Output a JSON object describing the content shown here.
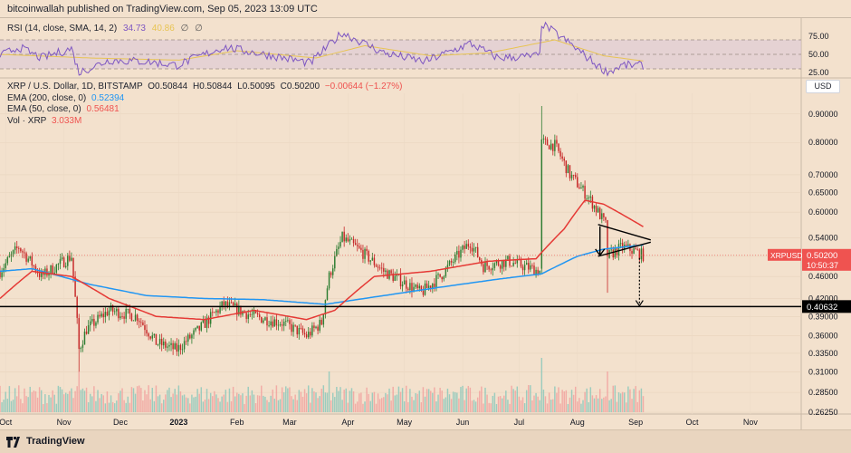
{
  "header": {
    "published": "bitcoinwallah published on TradingView.com, Sep 05, 2023 13:09 UTC"
  },
  "rsi_legend": {
    "label": "RSI (14, close, SMA, 14, 2)",
    "value": "34.73",
    "sma_value": "40.86",
    "extra1": "∅",
    "extra2": "∅"
  },
  "legend": {
    "symbol": "XRP / U.S. Dollar, 1D, BITSTAMP",
    "open": "O0.50844",
    "high": "H0.50844",
    "low": "L0.50095",
    "close": "C0.50200",
    "change": "−0.00644 (−1.27%)",
    "ema200_label": "EMA (200, close, 0)",
    "ema200_value": "0.52394",
    "ema50_label": "EMA (50, close, 0)",
    "ema50_value": "0.56481",
    "vol_label": "Vol · XRP",
    "vol_value": "3.033M"
  },
  "currency_button": "USD",
  "footer": {
    "brand": "TradingView"
  },
  "colors": {
    "background": "#f3e1cd",
    "up": "#26a69a",
    "down": "#ef5350",
    "candle_body_up": "#2e7d32",
    "candle_body_down": "#c62828",
    "ema200": "#2196f3",
    "ema50": "#e53935",
    "rsi": "#7e57c2",
    "rsi_sma": "#e8c453",
    "support": "#000000"
  },
  "chart_data": {
    "type": "candlestick",
    "title": "XRP / U.S. Dollar, 1D, BITSTAMP",
    "y_scale": "log",
    "ylim": [
      0.2626,
      0.98
    ],
    "y_ticks": [
      0.9,
      0.8,
      0.7,
      0.65,
      0.6,
      0.54,
      0.5,
      0.46,
      0.42,
      0.39,
      0.36,
      0.335,
      0.31,
      0.285,
      0.2625
    ],
    "y_tick_labels": [
      "0.90000",
      "0.80000",
      "0.70000",
      "0.65000",
      "0.60000",
      "0.54000",
      "0.50000",
      "0.46000",
      "0.42000",
      "0.39000",
      "0.36000",
      "0.33500",
      "0.31000",
      "0.28500",
      "0.26250"
    ],
    "x_labels": [
      "Oct",
      "Nov",
      "Dec",
      "2023",
      "Feb",
      "Mar",
      "Apr",
      "May",
      "Jun",
      "Jul",
      "Aug",
      "Sep",
      "Oct",
      "Nov"
    ],
    "xlim": [
      "2022-09-28",
      "2023-11-28"
    ],
    "last_date": "2023-09-05",
    "key_points": [
      {
        "date": "2022-09-28",
        "close": 0.47
      },
      {
        "date": "2022-10-08",
        "close": 0.52
      },
      {
        "date": "2022-10-20",
        "close": 0.46
      },
      {
        "date": "2022-11-05",
        "close": 0.5
      },
      {
        "date": "2022-11-09",
        "close": 0.34
      },
      {
        "date": "2022-11-13",
        "close": 0.37
      },
      {
        "date": "2022-11-25",
        "close": 0.4
      },
      {
        "date": "2022-12-10",
        "close": 0.39
      },
      {
        "date": "2022-12-20",
        "close": 0.35
      },
      {
        "date": "2022-12-31",
        "close": 0.34
      },
      {
        "date": "2023-01-12",
        "close": 0.37
      },
      {
        "date": "2023-01-25",
        "close": 0.41
      },
      {
        "date": "2023-02-10",
        "close": 0.39
      },
      {
        "date": "2023-02-25",
        "close": 0.38
      },
      {
        "date": "2023-03-10",
        "close": 0.36
      },
      {
        "date": "2023-03-18",
        "close": 0.38
      },
      {
        "date": "2023-03-22",
        "close": 0.46
      },
      {
        "date": "2023-03-29",
        "close": 0.54
      },
      {
        "date": "2023-04-08",
        "close": 0.51
      },
      {
        "date": "2023-04-20",
        "close": 0.47
      },
      {
        "date": "2023-05-10",
        "close": 0.43
      },
      {
        "date": "2023-05-20",
        "close": 0.46
      },
      {
        "date": "2023-06-05",
        "close": 0.53
      },
      {
        "date": "2023-06-12",
        "close": 0.48
      },
      {
        "date": "2023-06-25",
        "close": 0.49
      },
      {
        "date": "2023-07-12",
        "close": 0.47
      },
      {
        "date": "2023-07-13",
        "close": 0.8
      },
      {
        "date": "2023-07-20",
        "close": 0.79
      },
      {
        "date": "2023-07-28",
        "close": 0.7
      },
      {
        "date": "2023-08-08",
        "close": 0.63
      },
      {
        "date": "2023-08-16",
        "close": 0.57
      },
      {
        "date": "2023-08-17",
        "close": 0.5
      },
      {
        "date": "2023-08-25",
        "close": 0.52
      },
      {
        "date": "2023-09-01",
        "close": 0.51
      },
      {
        "date": "2023-09-05",
        "close": 0.502
      }
    ],
    "series": [
      {
        "name": "EMA (200, close, 0)",
        "color": "#2196f3",
        "points": [
          [
            "2022-09-28",
            0.47
          ],
          [
            "2022-10-15",
            0.475
          ],
          [
            "2022-11-15",
            0.445
          ],
          [
            "2022-12-15",
            0.425
          ],
          [
            "2023-01-15",
            0.42
          ],
          [
            "2023-02-15",
            0.418
          ],
          [
            "2023-03-20",
            0.41
          ],
          [
            "2023-04-20",
            0.425
          ],
          [
            "2023-05-20",
            0.44
          ],
          [
            "2023-06-20",
            0.455
          ],
          [
            "2023-07-13",
            0.465
          ],
          [
            "2023-08-01",
            0.5
          ],
          [
            "2023-08-15",
            0.515
          ],
          [
            "2023-09-05",
            0.524
          ]
        ]
      },
      {
        "name": "EMA (50, close, 0)",
        "color": "#e53935",
        "points": [
          [
            "2022-09-28",
            0.42
          ],
          [
            "2022-10-15",
            0.47
          ],
          [
            "2022-11-05",
            0.46
          ],
          [
            "2022-11-25",
            0.42
          ],
          [
            "2022-12-20",
            0.39
          ],
          [
            "2023-01-15",
            0.385
          ],
          [
            "2023-02-10",
            0.4
          ],
          [
            "2023-03-10",
            0.385
          ],
          [
            "2023-03-25",
            0.4
          ],
          [
            "2023-04-15",
            0.46
          ],
          [
            "2023-05-15",
            0.47
          ],
          [
            "2023-06-15",
            0.49
          ],
          [
            "2023-07-10",
            0.495
          ],
          [
            "2023-07-25",
            0.56
          ],
          [
            "2023-08-05",
            0.63
          ],
          [
            "2023-08-15",
            0.62
          ],
          [
            "2023-09-05",
            0.565
          ]
        ]
      }
    ],
    "current_price": {
      "label": "XRPUSD",
      "value": "0.50200",
      "countdown": "10:50:37"
    },
    "support_level": {
      "value": 0.40632,
      "label": "0.40632"
    },
    "projected_target": 0.406,
    "triangle": {
      "upper": [
        [
          "2023-08-12",
          0.57
        ],
        [
          "2023-09-09",
          0.535
        ]
      ],
      "lower": [
        [
          "2023-08-12",
          0.5
        ],
        [
          "2023-09-09",
          0.53
        ]
      ]
    },
    "rsi": {
      "label": "RSI (14, close, SMA, 14, 2)",
      "ylim": [
        20,
        95
      ],
      "ticks": [
        75,
        50,
        25
      ],
      "tick_labels": [
        "75.00",
        "50.00",
        "25.00"
      ],
      "points": [
        [
          "2022-09-28",
          48
        ],
        [
          "2022-10-08",
          60
        ],
        [
          "2022-10-20",
          45
        ],
        [
          "2022-11-05",
          58
        ],
        [
          "2022-11-09",
          25
        ],
        [
          "2022-11-25",
          42
        ],
        [
          "2022-12-15",
          40
        ],
        [
          "2022-12-31",
          35
        ],
        [
          "2023-01-25",
          60
        ],
        [
          "2023-02-20",
          48
        ],
        [
          "2023-03-12",
          38
        ],
        [
          "2023-03-29",
          80
        ],
        [
          "2023-04-20",
          52
        ],
        [
          "2023-05-12",
          40
        ],
        [
          "2023-06-05",
          65
        ],
        [
          "2023-06-20",
          45
        ],
        [
          "2023-07-12",
          48
        ],
        [
          "2023-07-13",
          93
        ],
        [
          "2023-07-28",
          65
        ],
        [
          "2023-08-10",
          38
        ],
        [
          "2023-08-17",
          25
        ],
        [
          "2023-08-25",
          35
        ],
        [
          "2023-09-05",
          34.73
        ]
      ],
      "sma_points": [
        [
          "2022-09-28",
          50
        ],
        [
          "2022-11-15",
          45
        ],
        [
          "2023-01-01",
          42
        ],
        [
          "2023-02-01",
          55
        ],
        [
          "2023-03-15",
          45
        ],
        [
          "2023-04-10",
          62
        ],
        [
          "2023-05-15",
          48
        ],
        [
          "2023-06-15",
          52
        ],
        [
          "2023-07-20",
          70
        ],
        [
          "2023-08-15",
          48
        ],
        [
          "2023-09-05",
          40.86
        ]
      ]
    }
  }
}
